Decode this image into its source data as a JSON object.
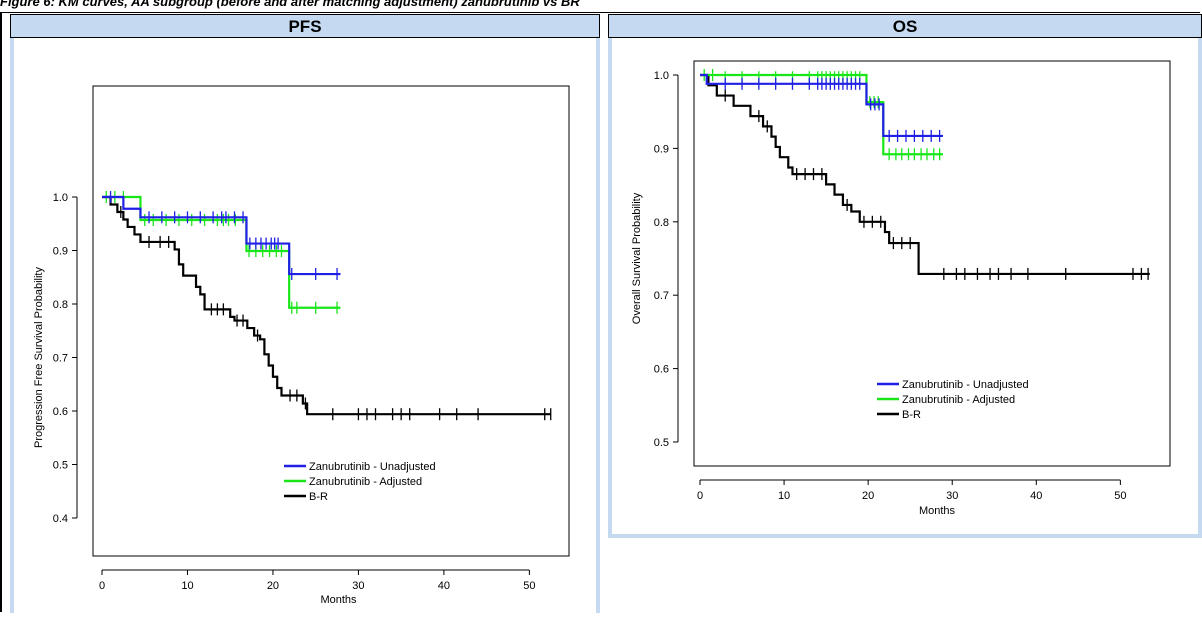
{
  "caption": "Figure 6: KM curves, AA subgroup (before and after matching adjustment) zanubrutinib vs BR",
  "chart_data": [
    {
      "panel_title": "PFS",
      "type": "line",
      "xlabel": "Months",
      "ylabel": "Progression Free Survival Probability",
      "xlim": [
        0,
        53
      ],
      "ylim": [
        0.4,
        1.0
      ],
      "x_ticks": [
        0,
        10,
        20,
        30,
        40,
        50
      ],
      "y_ticks": [
        "0.4",
        "0.5",
        "0.6",
        "0.7",
        "0.8",
        "0.9",
        "1.0"
      ],
      "legend_placement": "bottom-center",
      "series": [
        {
          "name": "Zanubrutinib - Unadjusted",
          "color": "#1f1fe6",
          "steps": [
            [
              0,
              1.0
            ],
            [
              2.5,
              0.978
            ],
            [
              4.5,
              0.962
            ],
            [
              16.9,
              0.913
            ],
            [
              21.9,
              0.856
            ],
            [
              27.9,
              0.856
            ]
          ],
          "censors": [
            [
              1,
              1.0
            ],
            [
              5.5,
              0.962
            ],
            [
              7,
              0.962
            ],
            [
              8.5,
              0.962
            ],
            [
              10,
              0.962
            ],
            [
              11.5,
              0.962
            ],
            [
              13,
              0.962
            ],
            [
              14,
              0.962
            ],
            [
              14.5,
              0.962
            ],
            [
              15.5,
              0.962
            ],
            [
              16.5,
              0.962
            ],
            [
              17.3,
              0.913
            ],
            [
              18,
              0.913
            ],
            [
              18.6,
              0.913
            ],
            [
              19.2,
              0.913
            ],
            [
              19.8,
              0.913
            ],
            [
              20.2,
              0.913
            ],
            [
              20.6,
              0.913
            ],
            [
              22.2,
              0.856
            ],
            [
              25,
              0.856
            ],
            [
              27.5,
              0.856
            ]
          ]
        },
        {
          "name": "Zanubrutinib - Adjusted",
          "color": "#19e619",
          "steps": [
            [
              0,
              1.0
            ],
            [
              4.5,
              0.957
            ],
            [
              16.9,
              0.899
            ],
            [
              21.9,
              0.793
            ],
            [
              27.9,
              0.793
            ]
          ],
          "censors": [
            [
              0.5,
              1.0
            ],
            [
              1.5,
              1.0
            ],
            [
              2.5,
              1.0
            ],
            [
              5,
              0.957
            ],
            [
              6,
              0.957
            ],
            [
              7.5,
              0.957
            ],
            [
              9,
              0.957
            ],
            [
              10.5,
              0.957
            ],
            [
              12,
              0.957
            ],
            [
              13.5,
              0.957
            ],
            [
              14.2,
              0.957
            ],
            [
              14.8,
              0.957
            ],
            [
              15.6,
              0.957
            ],
            [
              17.2,
              0.899
            ],
            [
              18,
              0.899
            ],
            [
              18.8,
              0.899
            ],
            [
              19.6,
              0.899
            ],
            [
              20.4,
              0.899
            ],
            [
              21,
              0.899
            ],
            [
              22.2,
              0.793
            ],
            [
              22.8,
              0.793
            ],
            [
              25,
              0.793
            ],
            [
              27.5,
              0.793
            ]
          ]
        },
        {
          "name": "B-R",
          "color": "#000000",
          "steps": [
            [
              0,
              1.0
            ],
            [
              1,
              0.986
            ],
            [
              1.8,
              0.972
            ],
            [
              2.5,
              0.958
            ],
            [
              3,
              0.944
            ],
            [
              3.8,
              0.93
            ],
            [
              4.5,
              0.916
            ],
            [
              8.5,
              0.902
            ],
            [
              9,
              0.874
            ],
            [
              9.5,
              0.853
            ],
            [
              11,
              0.832
            ],
            [
              11.5,
              0.818
            ],
            [
              12,
              0.79
            ],
            [
              15,
              0.776
            ],
            [
              15.5,
              0.769
            ],
            [
              17,
              0.755
            ],
            [
              17.8,
              0.741
            ],
            [
              18.5,
              0.734
            ],
            [
              19,
              0.706
            ],
            [
              19.5,
              0.685
            ],
            [
              20,
              0.664
            ],
            [
              20.5,
              0.643
            ],
            [
              21,
              0.629
            ],
            [
              23.5,
              0.614
            ],
            [
              24,
              0.594
            ],
            [
              52.5,
              0.594
            ]
          ],
          "censors": [
            [
              2.2,
              0.972
            ],
            [
              5.5,
              0.916
            ],
            [
              6.8,
              0.916
            ],
            [
              7.8,
              0.916
            ],
            [
              12.8,
              0.79
            ],
            [
              13.5,
              0.79
            ],
            [
              14.2,
              0.79
            ],
            [
              15.8,
              0.769
            ],
            [
              16.5,
              0.769
            ],
            [
              18.2,
              0.741
            ],
            [
              22,
              0.629
            ],
            [
              22.8,
              0.629
            ],
            [
              23.8,
              0.614
            ],
            [
              27,
              0.594
            ],
            [
              30,
              0.594
            ],
            [
              31,
              0.594
            ],
            [
              32,
              0.594
            ],
            [
              34,
              0.594
            ],
            [
              35,
              0.594
            ],
            [
              36,
              0.594
            ],
            [
              39.5,
              0.594
            ],
            [
              41.5,
              0.594
            ],
            [
              44,
              0.594
            ],
            [
              51.8,
              0.594
            ],
            [
              52.5,
              0.594
            ]
          ]
        }
      ]
    },
    {
      "panel_title": "OS",
      "type": "line",
      "xlabel": "Months",
      "ylabel": "Overall Survival Probability",
      "xlim": [
        0,
        54
      ],
      "ylim": [
        0.5,
        1.0
      ],
      "x_ticks": [
        0,
        10,
        20,
        30,
        40,
        50
      ],
      "y_ticks": [
        "0.5",
        "0.6",
        "0.7",
        "0.8",
        "0.9",
        "1.0"
      ],
      "legend_placement": "bottom-center",
      "series": [
        {
          "name": "Zanubrutinib - Unadjusted",
          "color": "#1f1fe6",
          "steps": [
            [
              0,
              1.0
            ],
            [
              0.8,
              0.988
            ],
            [
              19.8,
              0.96
            ],
            [
              21.8,
              0.917
            ],
            [
              28.9,
              0.917
            ]
          ],
          "censors": [
            [
              3,
              0.988
            ],
            [
              5,
              0.988
            ],
            [
              7,
              0.988
            ],
            [
              9,
              0.988
            ],
            [
              11,
              0.988
            ],
            [
              13,
              0.988
            ],
            [
              14,
              0.988
            ],
            [
              14.5,
              0.988
            ],
            [
              15,
              0.988
            ],
            [
              15.5,
              0.988
            ],
            [
              16,
              0.988
            ],
            [
              16.5,
              0.988
            ],
            [
              17,
              0.988
            ],
            [
              17.5,
              0.988
            ],
            [
              18,
              0.988
            ],
            [
              18.5,
              0.988
            ],
            [
              19,
              0.988
            ],
            [
              20.3,
              0.96
            ],
            [
              20.8,
              0.96
            ],
            [
              21.3,
              0.96
            ],
            [
              22.5,
              0.917
            ],
            [
              23.5,
              0.917
            ],
            [
              24.5,
              0.917
            ],
            [
              25.5,
              0.917
            ],
            [
              26.5,
              0.917
            ],
            [
              27.5,
              0.917
            ],
            [
              28.5,
              0.917
            ]
          ]
        },
        {
          "name": "Zanubrutinib - Adjusted",
          "color": "#19e619",
          "steps": [
            [
              0,
              1.0
            ],
            [
              19.8,
              0.963
            ],
            [
              21.8,
              0.892
            ],
            [
              28.9,
              0.892
            ]
          ],
          "censors": [
            [
              0.5,
              1.0
            ],
            [
              1.5,
              1.0
            ],
            [
              3,
              0.997
            ],
            [
              5,
              0.997
            ],
            [
              7,
              0.997
            ],
            [
              9,
              0.997
            ],
            [
              11,
              0.997
            ],
            [
              13,
              0.997
            ],
            [
              14,
              0.997
            ],
            [
              14.5,
              0.997
            ],
            [
              15,
              0.997
            ],
            [
              15.5,
              0.997
            ],
            [
              16,
              0.997
            ],
            [
              16.5,
              0.997
            ],
            [
              17,
              0.997
            ],
            [
              17.5,
              0.997
            ],
            [
              18,
              0.997
            ],
            [
              18.5,
              0.997
            ],
            [
              19,
              0.997
            ],
            [
              20.2,
              0.963
            ],
            [
              20.7,
              0.963
            ],
            [
              21.2,
              0.963
            ],
            [
              22.5,
              0.892
            ],
            [
              23.3,
              0.892
            ],
            [
              24,
              0.892
            ],
            [
              24.8,
              0.892
            ],
            [
              25.5,
              0.892
            ],
            [
              26.3,
              0.892
            ],
            [
              27,
              0.892
            ],
            [
              27.8,
              0.892
            ],
            [
              28.5,
              0.892
            ]
          ]
        },
        {
          "name": "B-R",
          "color": "#000000",
          "steps": [
            [
              0,
              1.0
            ],
            [
              1,
              0.986
            ],
            [
              2,
              0.972
            ],
            [
              4,
              0.958
            ],
            [
              6,
              0.944
            ],
            [
              7.5,
              0.93
            ],
            [
              8.5,
              0.916
            ],
            [
              9,
              0.902
            ],
            [
              9.5,
              0.888
            ],
            [
              10.5,
              0.874
            ],
            [
              11,
              0.865
            ],
            [
              15,
              0.851
            ],
            [
              16,
              0.837
            ],
            [
              17,
              0.823
            ],
            [
              18,
              0.814
            ],
            [
              19,
              0.8
            ],
            [
              22,
              0.786
            ],
            [
              22.5,
              0.771
            ],
            [
              26,
              0.729
            ],
            [
              53.5,
              0.729
            ]
          ],
          "censors": [
            [
              3,
              0.972
            ],
            [
              7,
              0.944
            ],
            [
              8,
              0.93
            ],
            [
              11.5,
              0.865
            ],
            [
              12.5,
              0.865
            ],
            [
              13.5,
              0.865
            ],
            [
              14.5,
              0.865
            ],
            [
              17.5,
              0.823
            ],
            [
              19.5,
              0.8
            ],
            [
              20.5,
              0.8
            ],
            [
              21.5,
              0.8
            ],
            [
              23,
              0.771
            ],
            [
              24,
              0.771
            ],
            [
              25,
              0.771
            ],
            [
              29,
              0.729
            ],
            [
              30.5,
              0.729
            ],
            [
              31.5,
              0.729
            ],
            [
              33,
              0.729
            ],
            [
              34.5,
              0.729
            ],
            [
              35.5,
              0.729
            ],
            [
              37,
              0.729
            ],
            [
              39,
              0.729
            ],
            [
              43.5,
              0.729
            ],
            [
              51.5,
              0.729
            ],
            [
              52.5,
              0.729
            ],
            [
              53.3,
              0.729
            ]
          ]
        }
      ]
    }
  ]
}
